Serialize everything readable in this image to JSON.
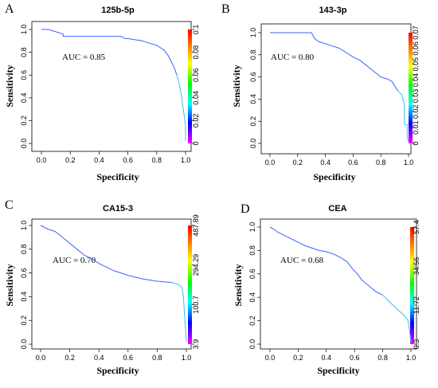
{
  "colors": {
    "curve_main": "#3b63ff",
    "curve_tail": "#2ec4ee"
  },
  "chart_data": [
    {
      "type": "line",
      "panel_label": "A",
      "title": "125b-5p",
      "xlabel": "Specificity",
      "ylabel": "Sensitivity",
      "annotation": "AUC = 0.85",
      "xlim": [
        0,
        1
      ],
      "ylim": [
        0,
        1
      ],
      "x_ticks": [
        "0.0",
        "0.2",
        "0.4",
        "0.6",
        "0.8",
        "1.0"
      ],
      "y_ticks": [
        "0.0",
        "0.2",
        "0.4",
        "0.6",
        "0.8",
        "1.0"
      ],
      "colorbar": {
        "ticks": [
          "0",
          "0.02",
          "0.04",
          "0.06",
          "0.08",
          "0.1"
        ]
      },
      "series": [
        {
          "x": [
            0.0,
            0.05,
            0.1,
            0.15,
            0.15,
            0.3,
            0.55,
            0.58,
            0.6,
            0.65,
            0.7,
            0.75,
            0.8,
            0.85,
            0.88,
            0.9,
            0.92,
            0.94,
            0.96,
            0.97,
            0.98,
            0.99,
            1.0,
            1.0
          ],
          "y": [
            1.0,
            1.0,
            0.98,
            0.96,
            0.94,
            0.94,
            0.94,
            0.92,
            0.92,
            0.91,
            0.9,
            0.88,
            0.86,
            0.82,
            0.77,
            0.72,
            0.67,
            0.6,
            0.5,
            0.42,
            0.33,
            0.25,
            0.15,
            0.02
          ]
        }
      ]
    },
    {
      "type": "line",
      "panel_label": "B",
      "title": "143-3p",
      "xlabel": "Specificity",
      "ylabel": "Sensitivity",
      "annotation": "AUC = 0.80",
      "xlim": [
        0,
        1
      ],
      "ylim": [
        0,
        1
      ],
      "x_ticks": [
        "0.0",
        "0.2",
        "0.4",
        "0.6",
        "0.8",
        "1.0"
      ],
      "y_ticks": [
        "0.0",
        "0.2",
        "0.4",
        "0.6",
        "0.8",
        "1.0"
      ],
      "colorbar": {
        "ticks": [
          "0",
          "0.01",
          "0.02",
          "0.03",
          "0.04",
          "0.05",
          "0.06",
          "0.07"
        ]
      },
      "series": [
        {
          "x": [
            0.0,
            0.3,
            0.32,
            0.35,
            0.4,
            0.45,
            0.5,
            0.55,
            0.6,
            0.65,
            0.7,
            0.75,
            0.8,
            0.85,
            0.88,
            0.9,
            0.92,
            0.95,
            0.97,
            0.97,
            0.99,
            0.99,
            1.0
          ],
          "y": [
            1.0,
            1.0,
            0.95,
            0.92,
            0.9,
            0.88,
            0.86,
            0.82,
            0.78,
            0.75,
            0.7,
            0.65,
            0.6,
            0.58,
            0.56,
            0.52,
            0.48,
            0.44,
            0.35,
            0.17,
            0.17,
            0.05,
            0.02
          ]
        }
      ]
    },
    {
      "type": "line",
      "panel_label": "C",
      "title": "CA15-3",
      "xlabel": "Specificity",
      "ylabel": "Sensitivity",
      "annotation": "AUC = 0.70",
      "xlim": [
        0,
        1
      ],
      "ylim": [
        0,
        1
      ],
      "x_ticks": [
        "0.0",
        "0.2",
        "0.4",
        "0.6",
        "0.8",
        "1.0"
      ],
      "y_ticks": [
        "0.0",
        "0.2",
        "0.4",
        "0.6",
        "0.8",
        "1.0"
      ],
      "colorbar": {
        "ticks": [
          "3.9",
          "100.7",
          "294.29",
          "487.89"
        ]
      },
      "series": [
        {
          "x": [
            0.0,
            0.05,
            0.1,
            0.15,
            0.2,
            0.25,
            0.3,
            0.35,
            0.4,
            0.45,
            0.5,
            0.55,
            0.6,
            0.7,
            0.8,
            0.9,
            0.95,
            0.97,
            0.98,
            0.99,
            1.0
          ],
          "y": [
            1.0,
            0.97,
            0.95,
            0.9,
            0.85,
            0.8,
            0.75,
            0.72,
            0.68,
            0.65,
            0.62,
            0.6,
            0.58,
            0.55,
            0.53,
            0.52,
            0.5,
            0.48,
            0.4,
            0.2,
            0.02
          ]
        }
      ]
    },
    {
      "type": "line",
      "panel_label": "D",
      "title": "CEA",
      "xlabel": "Specificity",
      "ylabel": "Sensitivity",
      "annotation": "AUC = 0.68",
      "xlim": [
        0,
        1
      ],
      "ylim": [
        0,
        1
      ],
      "x_ticks": [
        "0.0",
        "0.2",
        "0.4",
        "0.6",
        "0.8",
        "1.0"
      ],
      "y_ticks": [
        "0.0",
        "0.2",
        "0.4",
        "0.6",
        "0.8",
        "1.0"
      ],
      "colorbar": {
        "ticks": [
          "0.3",
          "11.72",
          "34.56",
          "57.4"
        ]
      },
      "series": [
        {
          "x": [
            0.0,
            0.03,
            0.05,
            0.1,
            0.15,
            0.2,
            0.25,
            0.3,
            0.35,
            0.4,
            0.45,
            0.5,
            0.55,
            0.58,
            0.62,
            0.65,
            0.7,
            0.75,
            0.8,
            0.85,
            0.9,
            0.95,
            0.98,
            0.99,
            1.0
          ],
          "y": [
            1.0,
            0.98,
            0.96,
            0.93,
            0.9,
            0.87,
            0.84,
            0.82,
            0.8,
            0.79,
            0.77,
            0.74,
            0.7,
            0.65,
            0.6,
            0.55,
            0.5,
            0.45,
            0.42,
            0.36,
            0.3,
            0.25,
            0.2,
            0.12,
            0.02
          ]
        }
      ]
    }
  ]
}
